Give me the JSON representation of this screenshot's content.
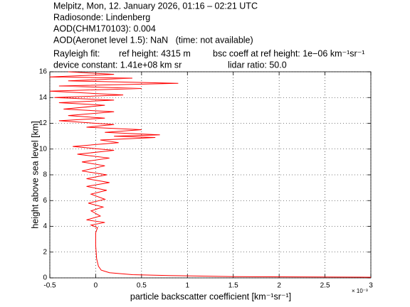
{
  "chart_data": {
    "type": "line",
    "title_lines": [
      "Melpitz, Mon, 12. January 2026, 01:16 – 02:21 UTC",
      "Radiosonde: Lindenberg",
      "AOD(CHM170103): 0.004",
      "AOD(Aeronet level 1.5): NaN   (time: not available)"
    ],
    "rayleigh_label": "Rayleigh fit:",
    "ref_height": "ref height: 4315 m",
    "bsc_coeff": "bsc coeff at ref height: 1e−06 km⁻¹sr⁻¹",
    "device_constant": "device constant: 1.41e+08 km sr",
    "lidar_ratio": "lidar ratio: 50.0",
    "xlabel": "particle backscatter coefficient [km⁻¹sr⁻¹]",
    "ylabel": "height above sea level [km]",
    "x_multiplier": "× 10⁻³",
    "color": "#ff0000",
    "grid": true,
    "xlim": [
      -0.5,
      3
    ],
    "xticks": [
      -0.5,
      0,
      0.5,
      1,
      1.5,
      2,
      2.5,
      3
    ],
    "ylim": [
      0,
      16
    ],
    "yticks": [
      0,
      2,
      4,
      6,
      8,
      10,
      12,
      14,
      16
    ],
    "x": [
      3.0,
      1.5,
      0.8,
      0.4,
      0.15,
      0.06,
      0.03,
      0.01,
      0.0,
      0.0,
      0.02,
      -0.05,
      0.1,
      -0.1,
      0.05,
      -0.05,
      0.08,
      -0.08,
      0.1,
      -0.05,
      0.12,
      -0.1,
      0.15,
      -0.1,
      0.12,
      -0.15,
      0.1,
      -0.15,
      0.15,
      -0.2,
      0.2,
      -0.25,
      0.25,
      0.05,
      0.65,
      0.2,
      0.7,
      0.1,
      0.5,
      -0.1,
      0.2,
      -0.4,
      0.1,
      -0.3,
      0.2,
      -0.35,
      0.1,
      -0.4,
      0.2,
      -0.45,
      0.3,
      -0.5,
      0.5,
      -0.4,
      0.9,
      -0.3,
      0.4,
      -0.5,
      0.2,
      -0.3
    ],
    "y": [
      0.05,
      0.1,
      0.18,
      0.25,
      0.4,
      0.6,
      0.9,
      1.5,
      2.5,
      3.5,
      3.9,
      4.1,
      4.3,
      4.5,
      4.8,
      5.2,
      5.5,
      5.8,
      6.1,
      6.5,
      6.8,
      7.1,
      7.4,
      7.7,
      8.0,
      8.3,
      8.7,
      9.0,
      9.3,
      9.6,
      9.9,
      10.2,
      10.5,
      10.7,
      10.9,
      11.0,
      11.1,
      11.3,
      11.5,
      11.7,
      11.9,
      12.2,
      12.4,
      12.6,
      12.9,
      13.1,
      13.4,
      13.6,
      13.8,
      14.0,
      14.2,
      14.5,
      14.7,
      14.9,
      15.1,
      15.3,
      15.5,
      15.6,
      15.8,
      16.0
    ]
  }
}
